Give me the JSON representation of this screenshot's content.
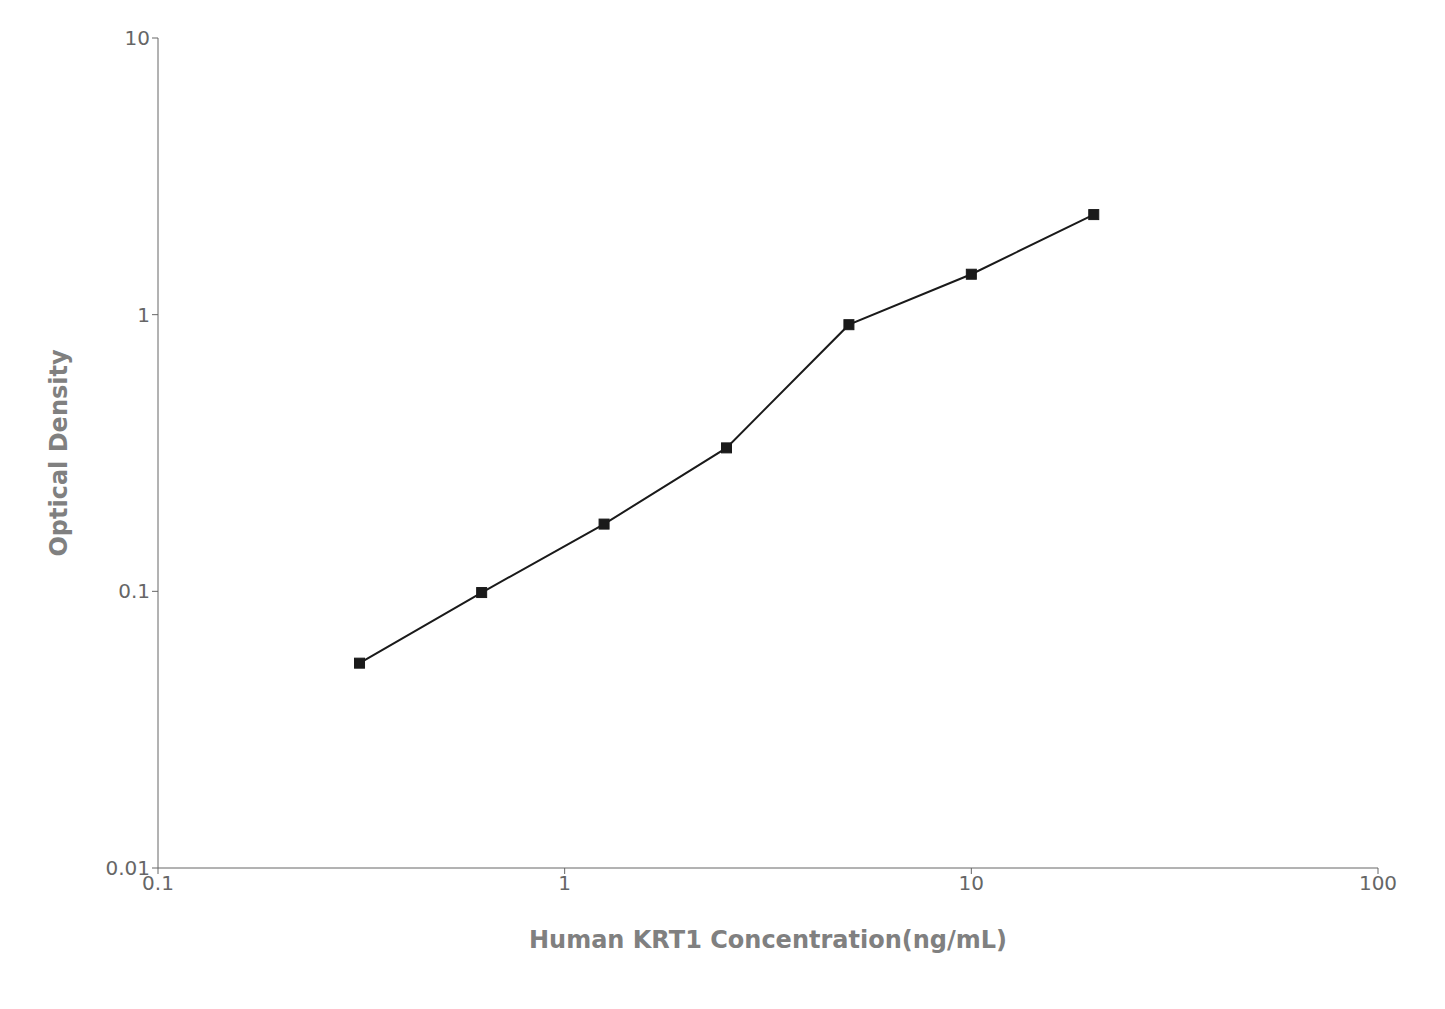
{
  "chart_data": {
    "type": "line",
    "x": [
      0.313,
      0.625,
      1.25,
      2.5,
      5.0,
      10.0,
      20.0
    ],
    "values": [
      0.055,
      0.099,
      0.175,
      0.33,
      0.92,
      1.4,
      2.3
    ],
    "xlabel": "Human KRT1 Concentration(ng/mL)",
    "ylabel": "Optical Density",
    "xlim": [
      0.1,
      100
    ],
    "ylim": [
      0.01,
      10
    ],
    "xticks": [
      0.1,
      1,
      10,
      100
    ],
    "yticks": [
      0.01,
      0.1,
      1,
      10
    ],
    "log": true,
    "grid": false,
    "color": "#1a1a1a",
    "marker": "square"
  }
}
